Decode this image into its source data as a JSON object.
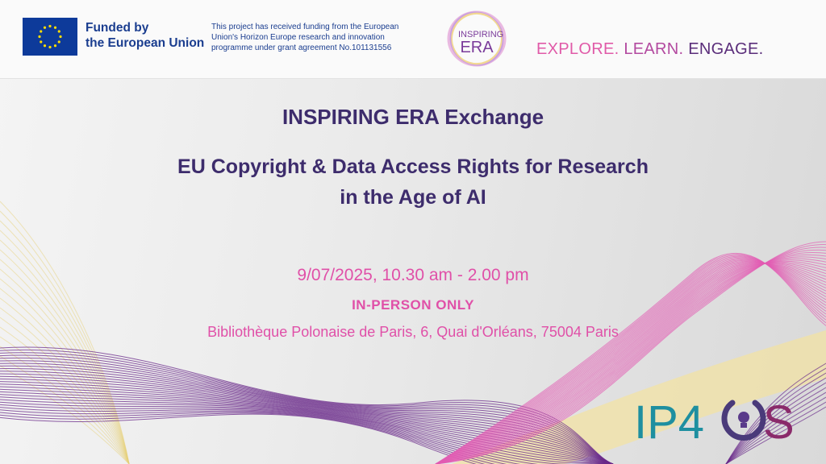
{
  "header": {
    "funder_line1": "Funded by",
    "funder_line2": "the European Union",
    "funding_note": [
      "This project has received funding from the European",
      "Union's Horizon Europe research and innovation",
      "programme under grant agreement No.101131556"
    ],
    "logo_text": {
      "line1": "INSPIRING",
      "line2": "ERA"
    },
    "tagline": [
      "EXPLORE.",
      "LEARN.",
      "ENGAGE."
    ]
  },
  "event": {
    "title": "INSPIRING ERA Exchange",
    "subtitle_line1": "EU Copyright & Data Access Rights for Research",
    "subtitle_line2": "in the Age of AI",
    "datetime": "9/07/2025, 10.30 am - 2.00 pm",
    "mode": "IN-PERSON ONLY",
    "address": "Bibliothèque Polonaise de Paris, 6, Quai d'Orléans, 75004 Paris"
  },
  "partner_logo": "IP4OS",
  "colors": {
    "title": "#3d2c6c",
    "accent_pink": "#e050a8",
    "eu_blue": "#0d3a9a",
    "eu_yellow": "#ffdd00"
  }
}
